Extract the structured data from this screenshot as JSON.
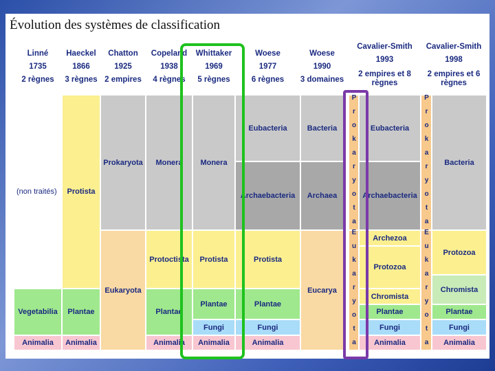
{
  "title": "Évolution des systèmes de classification",
  "columns": [
    {
      "name": "Linné",
      "year": "1735",
      "scheme": "2 règnes",
      "cells": [
        "(non traités)",
        "Vegetabilia",
        "Animalia"
      ]
    },
    {
      "name": "Haeckel",
      "year": "1866",
      "scheme": "3 règnes",
      "cells": [
        "Protista",
        "Plantae",
        "Animalia"
      ]
    },
    {
      "name": "Chatton",
      "year": "1925",
      "scheme": "2 empires",
      "cells": [
        "Prokaryota",
        "Eukaryota"
      ]
    },
    {
      "name": "Copeland",
      "year": "1938",
      "scheme": "4 règnes",
      "cells": [
        "Monera",
        "Protoctista",
        "Plantae",
        "Animalia"
      ]
    },
    {
      "name": "Whittaker",
      "year": "1969",
      "scheme": "5 règnes",
      "cells": [
        "Monera",
        "Protista",
        "Plantae",
        "Fungi",
        "Animalia"
      ]
    },
    {
      "name": "Woese",
      "year": "1977",
      "scheme": "6 règnes",
      "cells": [
        "Eubacteria",
        "Archaebacteria",
        "Protista",
        "Plantae",
        "Fungi",
        "Animalia"
      ]
    },
    {
      "name": "Woese",
      "year": "1990",
      "scheme": "3 domaines",
      "cells": [
        "Bacteria",
        "Archaea",
        "Eucarya"
      ]
    },
    {
      "name": "Cavalier-Smith",
      "year": "1993",
      "scheme": "2 empires et 8 règnes",
      "empires": [
        "Prokaryota",
        "Eukaryota"
      ],
      "cells": [
        "Eubacteria",
        "Archaebacteria",
        "Archezoa",
        "Protozoa",
        "Chromista",
        "Plantae",
        "Fungi",
        "Animalia"
      ]
    },
    {
      "name": "Cavalier-Smith",
      "year": "1998",
      "scheme": "2 empires et 6 règnes",
      "empires": [
        "Prokaryota",
        "Eukaryota"
      ],
      "cells": [
        "Bacteria",
        "Protozoa",
        "Chromista",
        "Plantae",
        "Fungi",
        "Animalia"
      ]
    }
  ]
}
